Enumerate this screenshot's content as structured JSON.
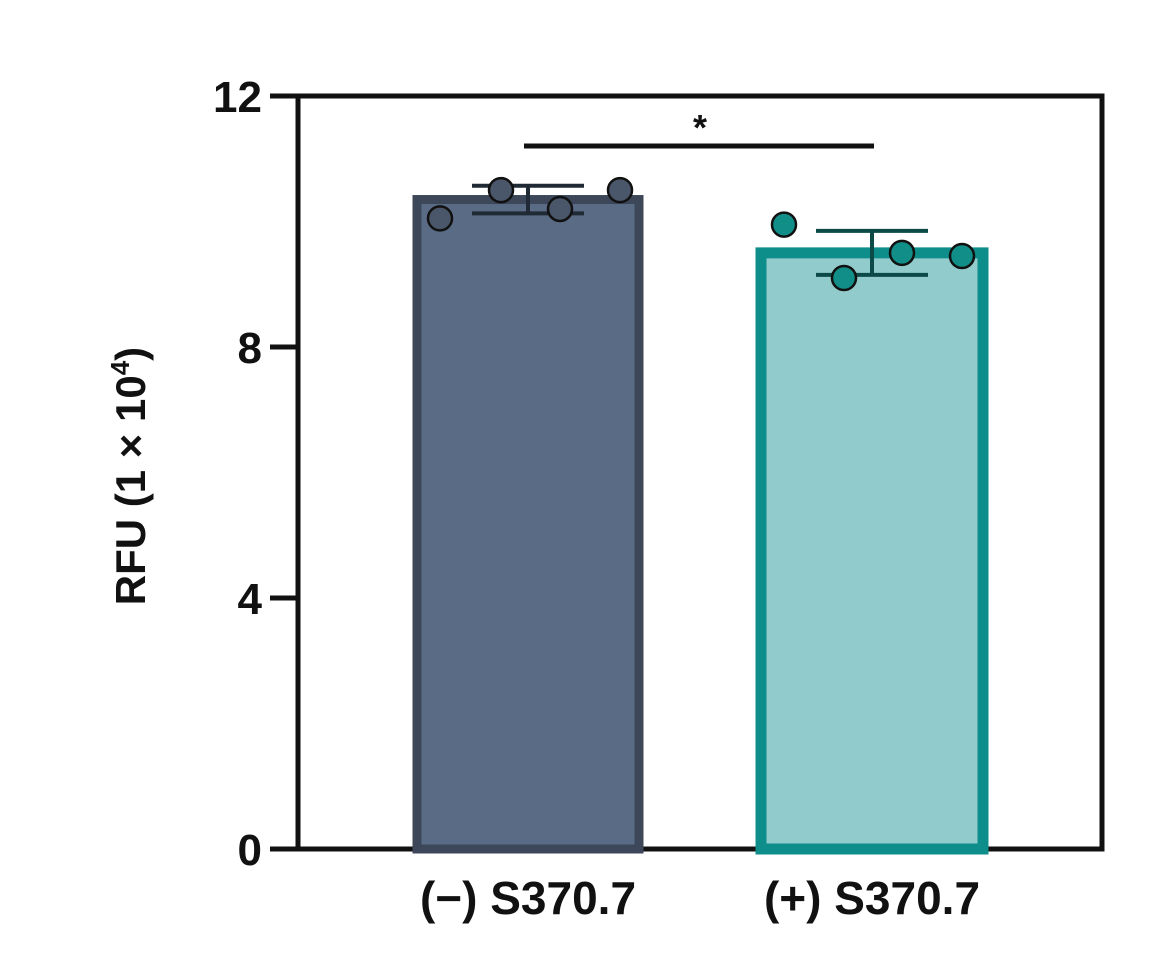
{
  "chart_data": {
    "type": "bar",
    "ylabel": "RFU (1 × 10",
    "ylabel_sup": "4",
    "ylabel_close": ")",
    "ylim": [
      0,
      12
    ],
    "yticks": [
      0,
      4,
      8,
      12
    ],
    "categories": [
      "(−) S370.7",
      "(+) S370.7"
    ],
    "values": [
      10.35,
      9.5
    ],
    "errors": [
      0.22,
      0.35
    ],
    "points": [
      [
        10.05,
        10.5,
        10.2,
        10.5
      ],
      [
        9.95,
        9.1,
        9.5,
        9.45
      ]
    ],
    "significance": {
      "between": [
        0,
        1
      ],
      "label": "*"
    },
    "colors": {
      "bar_fill": [
        "#5a6b85",
        "#92cbcb"
      ],
      "bar_edge": [
        "#3c4759",
        "#0e8e8a"
      ],
      "point_fill": [
        "#4a5669",
        "#128e89"
      ],
      "error": [
        "#1f2a35",
        "#0c4a47"
      ],
      "axis": "#111111"
    },
    "grid": false,
    "legend": "none"
  }
}
